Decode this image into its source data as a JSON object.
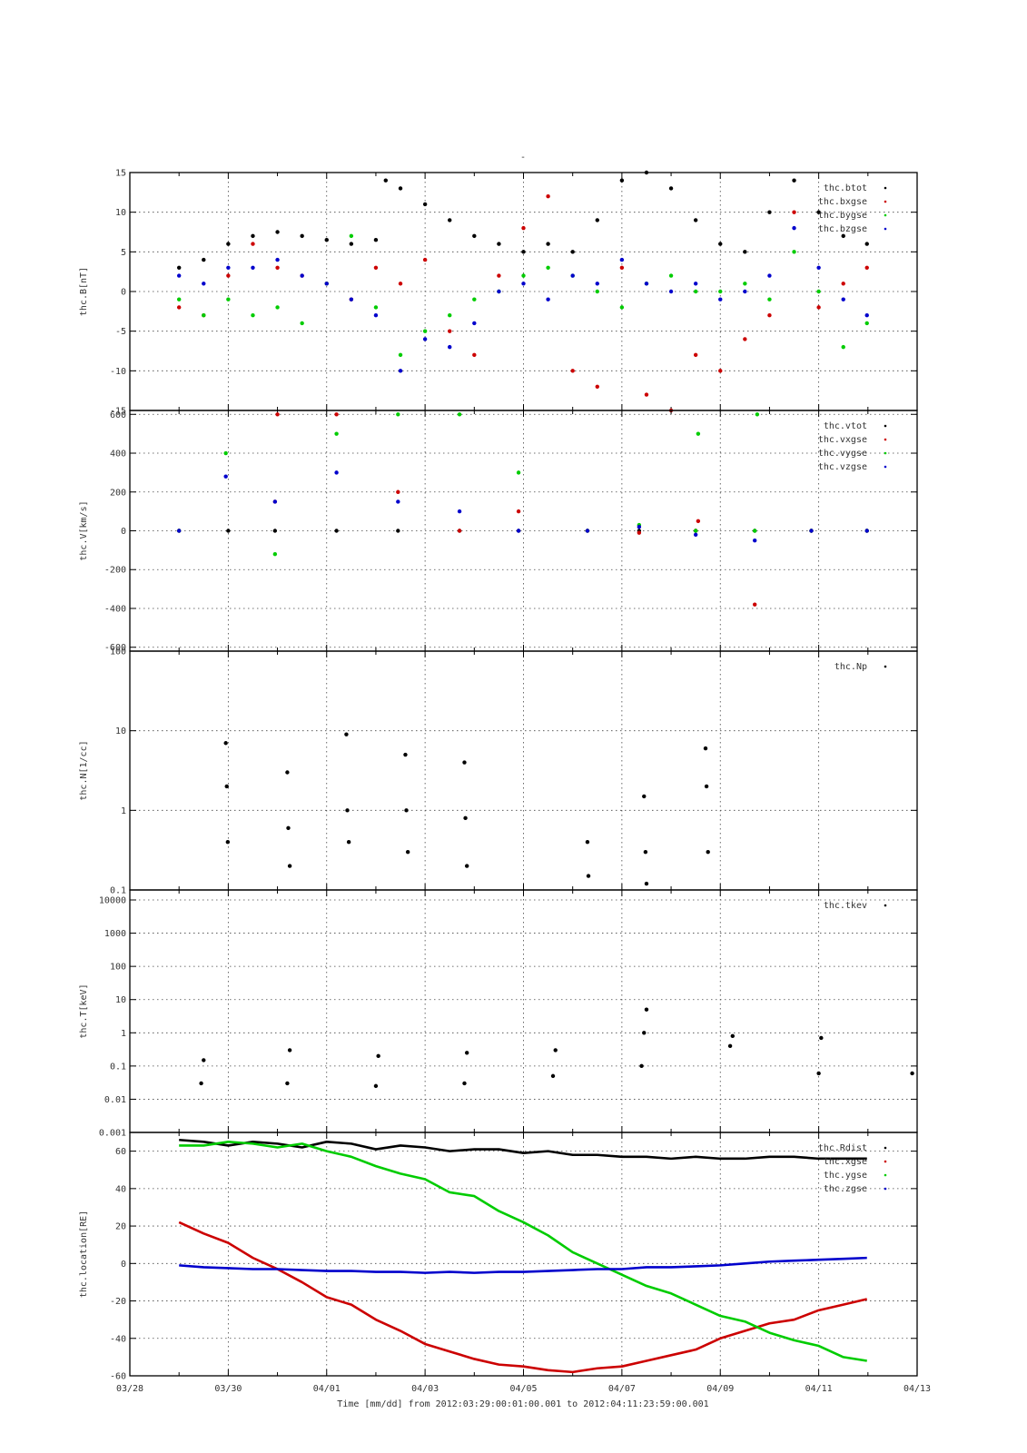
{
  "figure": {
    "top_label": "-",
    "time_label": "Time [mm/dd]  from 2012:03:29:00:01:00.001  to  2012:04:11:23:59:00.001",
    "x_ticks": [
      "03/28",
      "03/30",
      "04/01",
      "04/03",
      "04/05",
      "04/07",
      "04/09",
      "04/11",
      "04/13"
    ]
  },
  "chart_data": [
    {
      "type": "scatter",
      "ylabel": "thc.B[nT]",
      "xlim": [
        0,
        16
      ],
      "ylim": [
        -15,
        15
      ],
      "y_ticks": [
        "-15",
        "-10",
        "-5",
        "0",
        "5",
        "10",
        "15"
      ],
      "series": [
        {
          "name": "thc.btot",
          "color": "#000000",
          "x": [
            1.0,
            1.5,
            2.0,
            2.5,
            3.0,
            3.5,
            4.0,
            4.5,
            5.0,
            5.2,
            5.5,
            6.0,
            6.5,
            7.0,
            7.5,
            8.0,
            8.5,
            9.0,
            9.5,
            10.0,
            10.5,
            11.0,
            11.5,
            12.0,
            12.5,
            13.0,
            13.5,
            14.0,
            14.5,
            14.98
          ],
          "y": [
            3,
            4,
            6,
            7,
            7.5,
            7,
            6.5,
            6,
            6.5,
            14,
            13,
            11,
            9,
            7,
            6,
            5,
            6,
            5,
            9,
            14,
            15,
            13,
            9,
            6,
            5,
            10,
            14,
            10,
            7,
            6
          ]
        },
        {
          "name": "thc.bxgse",
          "color": "#cc0000",
          "x": [
            1.0,
            1.5,
            2.0,
            2.5,
            3.0,
            3.5,
            4.0,
            4.5,
            5.0,
            5.5,
            6.0,
            6.5,
            7.0,
            7.5,
            8.0,
            8.5,
            9.0,
            9.5,
            10.0,
            10.5,
            11.0,
            11.5,
            12.0,
            12.5,
            13.0,
            13.5,
            14.0,
            14.5,
            14.98
          ],
          "y": [
            -2,
            -3,
            2,
            6,
            3,
            2,
            1,
            -1,
            3,
            1,
            4,
            -5,
            -8,
            2,
            8,
            12,
            -10,
            -12,
            3,
            -13,
            -15,
            -8,
            -10,
            -6,
            -3,
            10,
            -2,
            1,
            3
          ]
        },
        {
          "name": "thc.bygse",
          "color": "#00cc00",
          "x": [
            1.0,
            1.5,
            2.0,
            2.5,
            3.0,
            3.5,
            4.0,
            4.5,
            5.0,
            5.5,
            6.0,
            6.5,
            7.0,
            7.5,
            8.0,
            8.5,
            9.0,
            9.5,
            10.0,
            10.5,
            11.0,
            11.5,
            12.0,
            12.5,
            13.0,
            13.5,
            14.0,
            14.5,
            14.98
          ],
          "y": [
            -1,
            -3,
            -1,
            -3,
            -2,
            -4,
            1,
            7,
            -2,
            -8,
            -5,
            -3,
            -1,
            0,
            2,
            3,
            2,
            0,
            -2,
            1,
            2,
            0,
            0,
            1,
            -1,
            5,
            0,
            -7,
            -4
          ]
        },
        {
          "name": "thc.bzgse",
          "color": "#0000cc",
          "x": [
            1.0,
            1.5,
            2.0,
            2.5,
            3.0,
            3.5,
            4.0,
            4.5,
            5.0,
            5.5,
            6.0,
            6.5,
            7.0,
            7.5,
            8.0,
            8.5,
            9.0,
            9.5,
            10.0,
            10.5,
            11.0,
            11.5,
            12.0,
            12.5,
            13.0,
            13.5,
            14.0,
            14.5,
            14.98
          ],
          "y": [
            2,
            1,
            3,
            3,
            4,
            2,
            1,
            -1,
            -3,
            -10,
            -6,
            -7,
            -4,
            0,
            1,
            -1,
            2,
            1,
            4,
            1,
            0,
            1,
            -1,
            0,
            2,
            8,
            3,
            -1,
            -3
          ]
        }
      ]
    },
    {
      "type": "scatter",
      "ylabel": "thc.V[km/s]",
      "xlim": [
        0,
        16
      ],
      "ylim": [
        -620,
        620
      ],
      "y_ticks": [
        "-600",
        "-400",
        "-200",
        "0",
        "200",
        "400",
        "600"
      ],
      "series": [
        {
          "name": "thc.vtot",
          "color": "#000000",
          "x": [
            1.0,
            2.0,
            2.95,
            4.2,
            5.45,
            6.7,
            7.9,
            9.3,
            10.35,
            11.5,
            12.7,
            13.85,
            14.98
          ],
          "y": [
            0,
            0,
            0,
            0,
            0,
            0,
            0,
            0,
            0,
            0,
            0,
            0,
            0
          ]
        },
        {
          "name": "thc.vxgse",
          "color": "#cc0000",
          "x": [
            1.0,
            2.95,
            3.0,
            4.2,
            5.45,
            6.7,
            7.9,
            9.3,
            10.35,
            11.5,
            11.55,
            12.7,
            13.85,
            14.98
          ],
          "y": [
            0,
            150,
            600,
            600,
            200,
            0,
            100,
            0,
            -10,
            0,
            50,
            -380,
            0,
            0
          ]
        },
        {
          "name": "thc.vygse",
          "color": "#00cc00",
          "x": [
            1.0,
            1.95,
            2.95,
            4.2,
            5.45,
            6.7,
            7.9,
            9.3,
            10.35,
            11.5,
            11.55,
            12.7,
            12.75,
            13.85,
            14.98
          ],
          "y": [
            0,
            400,
            -120,
            500,
            600,
            600,
            300,
            0,
            30,
            0,
            500,
            0,
            600,
            0,
            0
          ]
        },
        {
          "name": "thc.vzgse",
          "color": "#0000cc",
          "x": [
            1.0,
            1.95,
            2.95,
            4.2,
            5.45,
            6.7,
            7.9,
            9.3,
            10.35,
            11.5,
            12.7,
            13.85,
            14.98
          ],
          "y": [
            0,
            280,
            150,
            300,
            150,
            100,
            0,
            0,
            20,
            -20,
            -50,
            0,
            0
          ]
        }
      ]
    },
    {
      "type": "scatter",
      "ylabel": "thc.N[1/cc]",
      "xlim": [
        0,
        16
      ],
      "ylim": [
        0.1,
        100
      ],
      "yscale": "log",
      "y_ticks": [
        "0.1",
        "1",
        "10",
        "100"
      ],
      "series": [
        {
          "name": "thc.Np",
          "color": "#000000",
          "x": [
            1.95,
            1.97,
            1.99,
            3.2,
            3.22,
            3.25,
            4.4,
            4.42,
            4.45,
            5.6,
            5.62,
            5.65,
            6.8,
            6.82,
            6.85,
            9.3,
            9.32,
            10.45,
            10.48,
            10.5,
            11.7,
            11.72,
            11.75
          ],
          "y": [
            7,
            2,
            0.4,
            3,
            0.6,
            0.2,
            9,
            1,
            0.4,
            5,
            1,
            0.3,
            4,
            0.8,
            0.2,
            0.4,
            0.15,
            1.5,
            0.3,
            0.12,
            6,
            2,
            0.3
          ]
        }
      ]
    },
    {
      "type": "scatter",
      "ylabel": "thc.T[keV]",
      "xlim": [
        0,
        16
      ],
      "ylim": [
        0.001,
        20000
      ],
      "yscale": "log",
      "y_ticks": [
        "0.001",
        "0.01",
        "0.1",
        "1",
        "10",
        "100",
        "1000",
        "10000"
      ],
      "series": [
        {
          "name": "thc.tkev",
          "color": "#000000",
          "x": [
            1.45,
            1.5,
            3.2,
            3.25,
            5.0,
            5.05,
            6.8,
            6.85,
            8.6,
            8.65,
            10.4,
            10.45,
            10.5,
            12.2,
            12.25,
            14.0,
            14.05,
            15.9
          ],
          "y": [
            0.03,
            0.15,
            0.03,
            0.3,
            0.025,
            0.2,
            0.03,
            0.25,
            0.05,
            0.3,
            0.1,
            1,
            5,
            0.4,
            0.8,
            0.06,
            0.7,
            0.06
          ]
        }
      ]
    },
    {
      "type": "line",
      "ylabel": "thc.location[RE]",
      "xlim": [
        0,
        16
      ],
      "ylim": [
        -60,
        70
      ],
      "y_ticks": [
        "-60",
        "-40",
        "-20",
        "0",
        "20",
        "40",
        "60"
      ],
      "series": [
        {
          "name": "thc.Rdist",
          "color": "#000000",
          "x": [
            1.0,
            1.5,
            2.0,
            2.5,
            3.0,
            3.5,
            4.0,
            4.5,
            5.0,
            5.5,
            6.0,
            6.5,
            7.0,
            7.5,
            8.0,
            8.5,
            9.0,
            9.5,
            10.0,
            10.5,
            11.0,
            11.5,
            12.0,
            12.5,
            13.0,
            13.5,
            14.0,
            14.5,
            14.98
          ],
          "y": [
            66,
            65,
            63,
            65,
            64,
            62,
            65,
            64,
            61,
            63,
            62,
            60,
            61,
            61,
            59,
            60,
            58,
            58,
            57,
            57,
            56,
            57,
            56,
            56,
            57,
            57,
            56,
            56,
            56
          ]
        },
        {
          "name": "thc.xgse",
          "color": "#cc0000",
          "x": [
            1.0,
            1.5,
            2.0,
            2.5,
            3.0,
            3.5,
            4.0,
            4.5,
            5.0,
            5.5,
            6.0,
            6.5,
            7.0,
            7.5,
            8.0,
            8.5,
            9.0,
            9.5,
            10.0,
            10.5,
            11.0,
            11.5,
            12.0,
            12.5,
            13.0,
            13.5,
            14.0,
            14.5,
            14.98
          ],
          "y": [
            22,
            16,
            11,
            3,
            -3,
            -10,
            -18,
            -22,
            -30,
            -36,
            -43,
            -47,
            -51,
            -54,
            -55,
            -57,
            -58,
            -56,
            -55,
            -52,
            -49,
            -46,
            -40,
            -36,
            -32,
            -30,
            -25,
            -22,
            -19
          ]
        },
        {
          "name": "thc.ygse",
          "color": "#00cc00",
          "x": [
            1.0,
            1.5,
            2.0,
            2.5,
            3.0,
            3.5,
            4.0,
            4.5,
            5.0,
            5.5,
            6.0,
            6.5,
            7.0,
            7.5,
            8.0,
            8.5,
            9.0,
            9.5,
            10.0,
            10.5,
            11.0,
            11.5,
            12.0,
            12.5,
            13.0,
            13.5,
            14.0,
            14.5,
            14.98
          ],
          "y": [
            63,
            63,
            65,
            64,
            62,
            64,
            60,
            57,
            52,
            48,
            45,
            38,
            36,
            28,
            22,
            15,
            6,
            0,
            -6,
            -12,
            -16,
            -22,
            -28,
            -31,
            -37,
            -41,
            -44,
            -50,
            -52
          ]
        },
        {
          "name": "thc.zgse",
          "color": "#0000cc",
          "x": [
            1.0,
            1.5,
            2.0,
            2.5,
            3.0,
            3.5,
            4.0,
            4.5,
            5.0,
            5.5,
            6.0,
            6.5,
            7.0,
            7.5,
            8.0,
            8.5,
            9.0,
            9.5,
            10.0,
            10.5,
            11.0,
            11.5,
            12.0,
            12.5,
            13.0,
            13.5,
            14.0,
            14.5,
            14.98
          ],
          "y": [
            -1,
            -2,
            -2.5,
            -3,
            -3,
            -3.5,
            -4,
            -4,
            -4.5,
            -4.5,
            -5,
            -4.5,
            -5,
            -4.5,
            -4.5,
            -4,
            -3.5,
            -3,
            -3,
            -2,
            -2,
            -1.5,
            -1,
            0,
            1,
            1.5,
            2,
            2.5,
            3
          ]
        }
      ]
    }
  ]
}
